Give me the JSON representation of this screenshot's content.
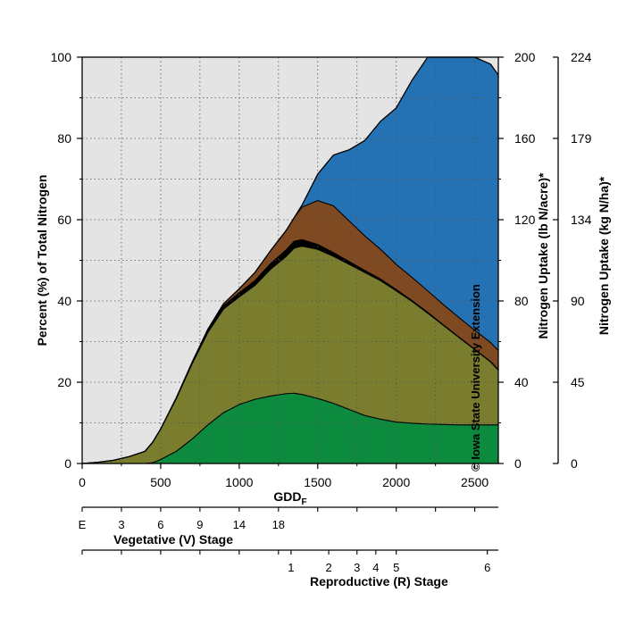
{
  "chart_data": {
    "type": "area",
    "stacked": true,
    "xlabel": "GDD",
    "xlabel_subscript": "F",
    "ylabel_left": "Percent (%) of Total Nitrogen",
    "ylabel_right1": "Nitrogen Uptake (lb N/acre)*",
    "ylabel_right2": "Nitrogen Uptake (kg N/ha)*",
    "xlim": [
      0,
      2650
    ],
    "ylim": [
      0,
      100
    ],
    "x_ticks": [
      "0",
      "500",
      "1000",
      "1500",
      "2000",
      "2500"
    ],
    "x_tick_values": [
      0,
      500,
      1000,
      1500,
      2000,
      2500
    ],
    "y_ticks_left": [
      "0",
      "20",
      "40",
      "60",
      "80",
      "100"
    ],
    "y_ticks_right1": [
      "0",
      "40",
      "80",
      "120",
      "160",
      "200"
    ],
    "y_ticks_right2": [
      "0",
      "45",
      "90",
      "134",
      "179",
      "224"
    ],
    "grid": true,
    "background_color": "#e4e4e4",
    "x": [
      0,
      100,
      200,
      300,
      400,
      450,
      500,
      600,
      700,
      800,
      900,
      1000,
      1100,
      1200,
      1300,
      1350,
      1400,
      1500,
      1600,
      1700,
      1800,
      1900,
      2000,
      2100,
      2200,
      2300,
      2400,
      2500,
      2600,
      2650
    ],
    "series": [
      {
        "color": "#0c8a3e",
        "values": [
          0,
          0,
          0,
          0,
          0,
          0.2,
          1,
          3,
          6,
          9.5,
          12.5,
          14.5,
          15.8,
          16.6,
          17.2,
          17.3,
          17.0,
          16.0,
          14.8,
          13.3,
          11.8,
          10.9,
          10.2,
          9.9,
          9.7,
          9.6,
          9.5,
          9.5,
          9.5,
          9.5
        ]
      },
      {
        "color": "#7b7d2e",
        "values": [
          0,
          0.3,
          0.8,
          1.7,
          3,
          5.1,
          7.5,
          13,
          18.5,
          22.7,
          25.5,
          26.5,
          28,
          31.2,
          33.8,
          35.7,
          36.5,
          36.7,
          36.2,
          35.7,
          35.2,
          34.1,
          32.3,
          30.0,
          27.3,
          24.4,
          21.5,
          18.5,
          15.5,
          13.5
        ]
      },
      {
        "color": "#000000",
        "values": [
          0,
          0,
          0,
          0,
          0,
          0,
          0,
          0.2,
          0.4,
          0.6,
          0.8,
          1.0,
          1.2,
          1.4,
          1.6,
          1.7,
          1.6,
          1.2,
          0.9,
          0.7,
          0.5,
          0.4,
          0.3,
          0.2,
          0.2,
          0.1,
          0.1,
          0.1,
          0.1,
          0.1
        ]
      },
      {
        "color": "#7f4a22",
        "values": [
          0,
          0,
          0,
          0,
          0,
          0,
          0,
          0,
          0,
          0.2,
          0.5,
          1.0,
          2.0,
          3.2,
          4.8,
          5.8,
          8.0,
          10.8,
          11.5,
          10.0,
          8.5,
          7.3,
          6.2,
          5.7,
          5.3,
          5.0,
          4.8,
          4.7,
          4.7,
          4.7
        ]
      },
      {
        "color": "#2472b4",
        "values": [
          0,
          0,
          0,
          0,
          0,
          0,
          0,
          0,
          0,
          0,
          0,
          0,
          0,
          0,
          0,
          0,
          0.5,
          6.5,
          12.5,
          17.5,
          23.5,
          31.5,
          38.5,
          48.5,
          57.5,
          66.9,
          73.5,
          74.1,
          68.5,
          67.8
        ]
      }
    ],
    "vegetative_ticks": [
      "E",
      "3",
      "6",
      "9",
      "14",
      "18"
    ],
    "vegetative_tick_x": [
      0,
      250,
      500,
      750,
      1000,
      1250
    ],
    "vegetative_label": "Vegetative (V) Stage",
    "reproductive_ticks": [
      "1",
      "2",
      "3",
      "4",
      "5",
      "6"
    ],
    "reproductive_tick_x": [
      1330,
      1570,
      1750,
      1870,
      2000,
      2580
    ],
    "reproductive_label": "Reproductive (R) Stage"
  },
  "credit": "© Iowa State University Extension"
}
